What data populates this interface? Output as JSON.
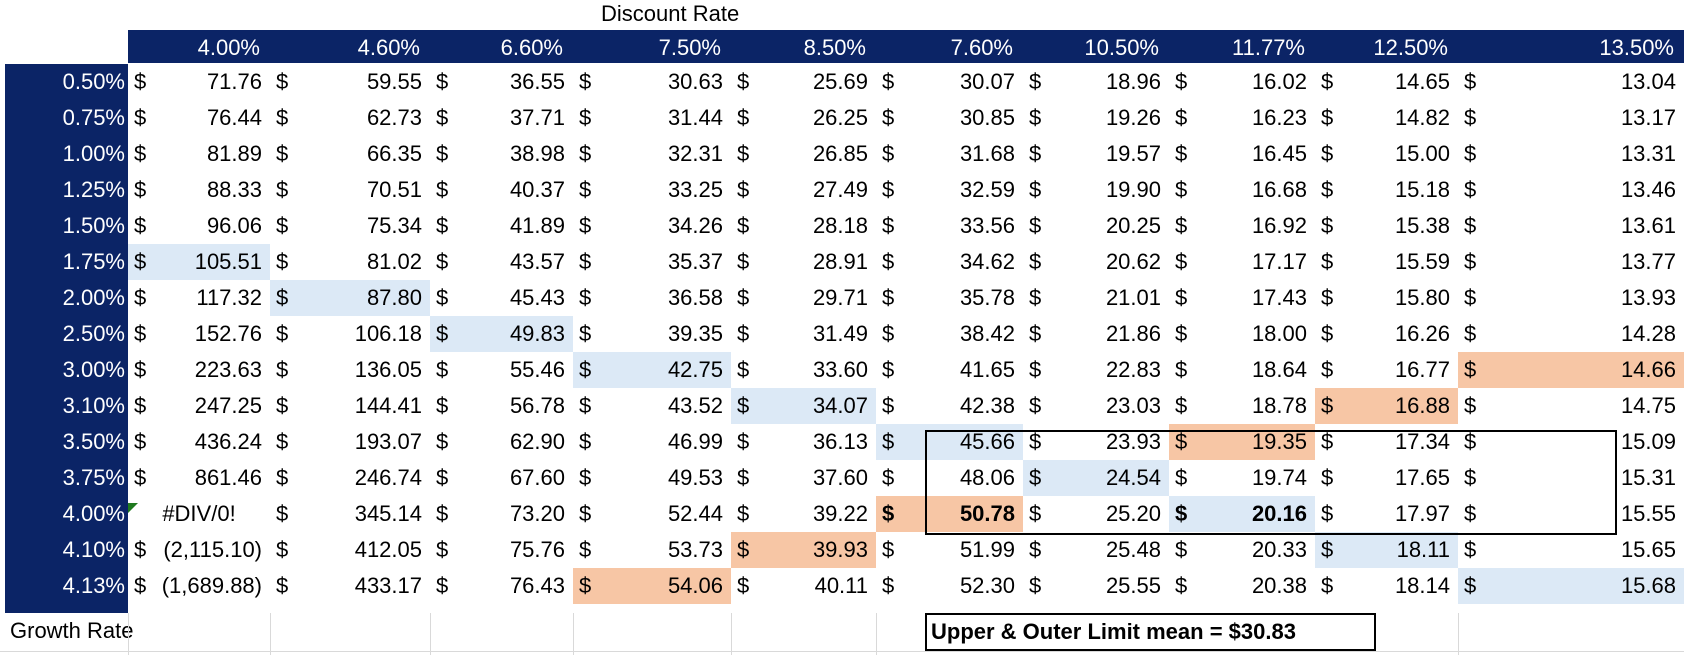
{
  "title": "Discount Rate",
  "col_headers": [
    "4.00%",
    "4.60%",
    "6.60%",
    "7.50%",
    "8.50%",
    "7.60%",
    "10.50%",
    "11.77%",
    "12.50%",
    "13.50%"
  ],
  "row_labels": [
    "0.50%",
    "0.75%",
    "1.00%",
    "1.25%",
    "1.50%",
    "1.75%",
    "2.00%",
    "2.50%",
    "3.00%",
    "3.10%",
    "3.50%",
    "3.75%",
    "4.00%",
    "4.10%",
    "4.13%"
  ],
  "currency_symbol": "$",
  "cells": [
    [
      "71.76",
      "59.55",
      "36.55",
      "30.63",
      "25.69",
      "30.07",
      "18.96",
      "16.02",
      "14.65",
      "13.04"
    ],
    [
      "76.44",
      "62.73",
      "37.71",
      "31.44",
      "26.25",
      "30.85",
      "19.26",
      "16.23",
      "14.82",
      "13.17"
    ],
    [
      "81.89",
      "66.35",
      "38.98",
      "32.31",
      "26.85",
      "31.68",
      "19.57",
      "16.45",
      "15.00",
      "13.31"
    ],
    [
      "88.33",
      "70.51",
      "40.37",
      "33.25",
      "27.49",
      "32.59",
      "19.90",
      "16.68",
      "15.18",
      "13.46"
    ],
    [
      "96.06",
      "75.34",
      "41.89",
      "34.26",
      "28.18",
      "33.56",
      "20.25",
      "16.92",
      "15.38",
      "13.61"
    ],
    [
      "105.51",
      "81.02",
      "43.57",
      "35.37",
      "28.91",
      "34.62",
      "20.62",
      "17.17",
      "15.59",
      "13.77"
    ],
    [
      "117.32",
      "87.80",
      "45.43",
      "36.58",
      "29.71",
      "35.78",
      "21.01",
      "17.43",
      "15.80",
      "13.93"
    ],
    [
      "152.76",
      "106.18",
      "49.83",
      "39.35",
      "31.49",
      "38.42",
      "21.86",
      "18.00",
      "16.26",
      "14.28"
    ],
    [
      "223.63",
      "136.05",
      "55.46",
      "42.75",
      "33.60",
      "41.65",
      "22.83",
      "18.64",
      "16.77",
      "14.66"
    ],
    [
      "247.25",
      "144.41",
      "56.78",
      "43.52",
      "34.07",
      "42.38",
      "23.03",
      "18.78",
      "16.88",
      "14.75"
    ],
    [
      "436.24",
      "193.07",
      "62.90",
      "46.99",
      "36.13",
      "45.66",
      "23.93",
      "19.35",
      "17.34",
      "15.09"
    ],
    [
      "861.46",
      "246.74",
      "67.60",
      "49.53",
      "37.60",
      "48.06",
      "24.54",
      "19.74",
      "17.65",
      "15.31"
    ],
    [
      "#DIV/0!",
      "345.14",
      "73.20",
      "52.44",
      "39.22",
      "50.78",
      "25.20",
      "20.16",
      "17.97",
      "15.55"
    ],
    [
      "(2,115.10)",
      "412.05",
      "75.76",
      "53.73",
      "39.93",
      "51.99",
      "25.48",
      "20.33",
      "18.11",
      "15.65"
    ],
    [
      "(1,689.88)",
      "433.17",
      "76.43",
      "54.06",
      "40.11",
      "52.30",
      "25.55",
      "20.38",
      "18.14",
      "15.68"
    ]
  ],
  "highlights": [
    {
      "row": 5,
      "col": 0,
      "color": "blue"
    },
    {
      "row": 6,
      "col": 1,
      "color": "blue"
    },
    {
      "row": 7,
      "col": 2,
      "color": "blue"
    },
    {
      "row": 8,
      "col": 3,
      "color": "blue"
    },
    {
      "row": 9,
      "col": 4,
      "color": "blue"
    },
    {
      "row": 10,
      "col": 5,
      "color": "blue"
    },
    {
      "row": 11,
      "col": 6,
      "color": "blue"
    },
    {
      "row": 12,
      "col": 7,
      "color": "blue"
    },
    {
      "row": 13,
      "col": 8,
      "color": "blue"
    },
    {
      "row": 14,
      "col": 9,
      "color": "blue"
    },
    {
      "row": 8,
      "col": 9,
      "color": "orange"
    },
    {
      "row": 9,
      "col": 8,
      "color": "orange"
    },
    {
      "row": 10,
      "col": 7,
      "color": "orange"
    },
    {
      "row": 12,
      "col": 5,
      "color": "orange"
    },
    {
      "row": 13,
      "col": 4,
      "color": "orange"
    },
    {
      "row": 14,
      "col": 3,
      "color": "orange"
    }
  ],
  "bold_cells": [
    {
      "row": 12,
      "col": 5
    },
    {
      "row": 12,
      "col": 7
    }
  ],
  "colors": {
    "header_bg": "#0b2466",
    "highlight_blue": "#dce9f6",
    "highlight_orange": "#f7c6a5"
  },
  "footer": {
    "growth_label": "Growth Rate",
    "note": "Upper & Outer Limit mean = $30.83"
  }
}
